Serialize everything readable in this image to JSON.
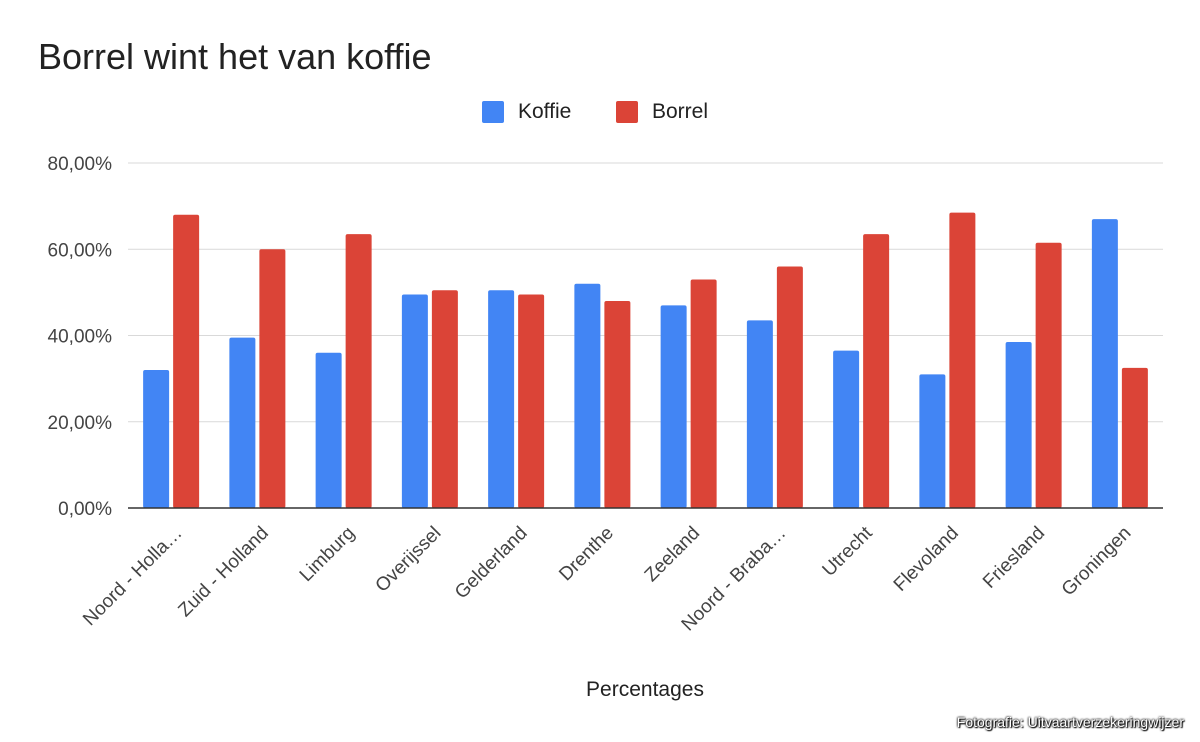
{
  "chart_data": {
    "type": "bar",
    "title": "Borrel wint het van koffie",
    "xlabel": "Percentages",
    "ylabel": "",
    "ylim": [
      0,
      80
    ],
    "yticks": [
      "0,00%",
      "20,00%",
      "40,00%",
      "60,00%",
      "80,00%"
    ],
    "grid": true,
    "legend_position": "top",
    "categories": [
      "Noord - Holla…",
      "Zuid - Holland",
      "Limburg",
      "Overijssel",
      "Gelderland",
      "Drenthe",
      "Zeeland",
      "Noord - Braba…",
      "Utrecht",
      "Flevoland",
      "Friesland",
      "Groningen"
    ],
    "series": [
      {
        "name": "Koffie",
        "color": "#4285f4",
        "values": [
          32,
          39.5,
          36,
          49.5,
          50.5,
          52,
          47,
          43.5,
          36.5,
          31,
          38.5,
          67
        ]
      },
      {
        "name": "Borrel",
        "color": "#db4437",
        "values": [
          68,
          60,
          63.5,
          50.5,
          49.5,
          48,
          53,
          56,
          63.5,
          68.5,
          61.5,
          32.5
        ]
      }
    ]
  },
  "credit": "Fotografie: Uitvaartverzekeringwijzer"
}
